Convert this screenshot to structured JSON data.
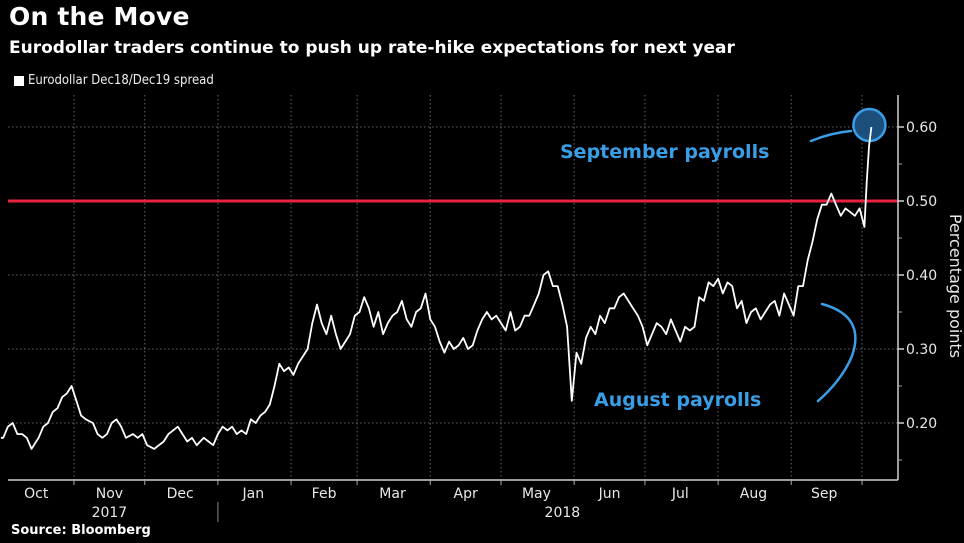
{
  "header": {
    "title": "On the Move",
    "subtitle": "Eurodollar traders continue to push up rate-hike expectations for next year"
  },
  "legend": {
    "series_label": "Eurodollar Dec18/Dec19 spread",
    "icon": "square-swatch"
  },
  "footer": {
    "source": "Source: Bloomberg"
  },
  "colors": {
    "background": "#000000",
    "line": "#ffffff",
    "reference_line": "#e8223f",
    "annotation": "#3a9ee6",
    "grid": "#666666"
  },
  "chart_data": {
    "type": "line",
    "title": "On the Move",
    "subtitle": "Eurodollar traders continue to push up rate-hike expectations for next year",
    "xlabel": "",
    "ylabel": "Percentage points",
    "ylim": [
      0.13,
      0.645
    ],
    "yticks": [
      0.2,
      0.3,
      0.4,
      0.5,
      0.6
    ],
    "ytick_labels": [
      "0.20",
      "0.30",
      "0.40",
      "0.50",
      "0.60"
    ],
    "xlim": [
      "2017-10-01",
      "2018-10-15"
    ],
    "x_month_boundaries": [
      "2017-11-01",
      "2017-12-01",
      "2018-01-01",
      "2018-02-01",
      "2018-03-01",
      "2018-04-01",
      "2018-05-01",
      "2018-06-01",
      "2018-07-01",
      "2018-08-01",
      "2018-09-01",
      "2018-10-01"
    ],
    "xtick_labels": [
      {
        "label": "Oct",
        "mid": "2017-10-16"
      },
      {
        "label": "Nov",
        "mid": "2017-11-16"
      },
      {
        "label": "Dec",
        "mid": "2017-12-16"
      },
      {
        "label": "Jan",
        "mid": "2018-01-16"
      },
      {
        "label": "Feb",
        "mid": "2018-02-15"
      },
      {
        "label": "Mar",
        "mid": "2018-03-16"
      },
      {
        "label": "Apr",
        "mid": "2018-04-16"
      },
      {
        "label": "May",
        "mid": "2018-05-16"
      },
      {
        "label": "Jun",
        "mid": "2018-06-16"
      },
      {
        "label": "Jul",
        "mid": "2018-07-16"
      },
      {
        "label": "Aug",
        "mid": "2018-08-16"
      },
      {
        "label": "Sep",
        "mid": "2018-09-15"
      }
    ],
    "year_labels": [
      {
        "label": "2017",
        "mid": "2017-11-16"
      },
      {
        "label": "2018",
        "mid": "2018-05-27"
      }
    ],
    "year_divider": "2018-01-01",
    "legend": [
      "Eurodollar Dec18/Dec19 spread"
    ],
    "legend_position": "top-left",
    "grid": true,
    "reference_lines": [
      {
        "y": 0.5,
        "color": "#e8223f"
      }
    ],
    "annotations": [
      {
        "text": "September payrolls",
        "target": [
          "2018-10-05",
          0.6
        ]
      },
      {
        "text": "August payrolls",
        "target": [
          "2018-09-07",
          0.36
        ]
      }
    ],
    "series": [
      {
        "name": "Eurodollar Dec18/Dec19 spread",
        "points": [
          [
            "2017-10-01",
            0.18
          ],
          [
            "2017-10-02",
            0.18
          ],
          [
            "2017-10-04",
            0.195
          ],
          [
            "2017-10-06",
            0.2
          ],
          [
            "2017-10-08",
            0.185
          ],
          [
            "2017-10-10",
            0.185
          ],
          [
            "2017-10-12",
            0.18
          ],
          [
            "2017-10-14",
            0.165
          ],
          [
            "2017-10-17",
            0.18
          ],
          [
            "2017-10-19",
            0.195
          ],
          [
            "2017-10-21",
            0.2
          ],
          [
            "2017-10-23",
            0.215
          ],
          [
            "2017-10-25",
            0.22
          ],
          [
            "2017-10-27",
            0.235
          ],
          [
            "2017-10-29",
            0.24
          ],
          [
            "2017-10-31",
            0.25
          ],
          [
            "2017-11-02",
            0.23
          ],
          [
            "2017-11-04",
            0.21
          ],
          [
            "2017-11-06",
            0.205
          ],
          [
            "2017-11-09",
            0.2
          ],
          [
            "2017-11-11",
            0.185
          ],
          [
            "2017-11-13",
            0.18
          ],
          [
            "2017-11-15",
            0.185
          ],
          [
            "2017-11-17",
            0.2
          ],
          [
            "2017-11-19",
            0.205
          ],
          [
            "2017-11-21",
            0.195
          ],
          [
            "2017-11-23",
            0.18
          ],
          [
            "2017-11-26",
            0.185
          ],
          [
            "2017-11-28",
            0.18
          ],
          [
            "2017-11-30",
            0.185
          ],
          [
            "2017-12-02",
            0.17
          ],
          [
            "2017-12-05",
            0.165
          ],
          [
            "2017-12-07",
            0.17
          ],
          [
            "2017-12-09",
            0.175
          ],
          [
            "2017-12-11",
            0.185
          ],
          [
            "2017-12-13",
            0.19
          ],
          [
            "2017-12-15",
            0.195
          ],
          [
            "2017-12-17",
            0.185
          ],
          [
            "2017-12-19",
            0.175
          ],
          [
            "2017-12-21",
            0.18
          ],
          [
            "2017-12-23",
            0.17
          ],
          [
            "2017-12-26",
            0.18
          ],
          [
            "2017-12-28",
            0.175
          ],
          [
            "2017-12-30",
            0.17
          ],
          [
            "2018-01-01",
            0.185
          ],
          [
            "2018-01-03",
            0.195
          ],
          [
            "2018-01-05",
            0.19
          ],
          [
            "2018-01-07",
            0.195
          ],
          [
            "2018-01-09",
            0.185
          ],
          [
            "2018-01-11",
            0.19
          ],
          [
            "2018-01-13",
            0.185
          ],
          [
            "2018-01-15",
            0.205
          ],
          [
            "2018-01-17",
            0.2
          ],
          [
            "2018-01-19",
            0.21
          ],
          [
            "2018-01-21",
            0.215
          ],
          [
            "2018-01-23",
            0.225
          ],
          [
            "2018-01-25",
            0.25
          ],
          [
            "2018-01-27",
            0.28
          ],
          [
            "2018-01-29",
            0.27
          ],
          [
            "2018-01-31",
            0.275
          ],
          [
            "2018-02-02",
            0.265
          ],
          [
            "2018-02-04",
            0.28
          ],
          [
            "2018-02-06",
            0.29
          ],
          [
            "2018-02-08",
            0.3
          ],
          [
            "2018-02-10",
            0.335
          ],
          [
            "2018-02-12",
            0.36
          ],
          [
            "2018-02-14",
            0.335
          ],
          [
            "2018-02-16",
            0.32
          ],
          [
            "2018-02-18",
            0.345
          ],
          [
            "2018-02-20",
            0.32
          ],
          [
            "2018-02-22",
            0.3
          ],
          [
            "2018-02-24",
            0.31
          ],
          [
            "2018-02-26",
            0.32
          ],
          [
            "2018-02-28",
            0.345
          ],
          [
            "2018-03-02",
            0.35
          ],
          [
            "2018-03-04",
            0.37
          ],
          [
            "2018-03-06",
            0.355
          ],
          [
            "2018-03-08",
            0.33
          ],
          [
            "2018-03-10",
            0.35
          ],
          [
            "2018-03-12",
            0.32
          ],
          [
            "2018-03-14",
            0.335
          ],
          [
            "2018-03-16",
            0.345
          ],
          [
            "2018-03-18",
            0.35
          ],
          [
            "2018-03-20",
            0.365
          ],
          [
            "2018-03-22",
            0.34
          ],
          [
            "2018-03-24",
            0.33
          ],
          [
            "2018-03-26",
            0.35
          ],
          [
            "2018-03-28",
            0.355
          ],
          [
            "2018-03-30",
            0.375
          ],
          [
            "2018-04-01",
            0.34
          ],
          [
            "2018-04-03",
            0.33
          ],
          [
            "2018-04-05",
            0.31
          ],
          [
            "2018-04-07",
            0.295
          ],
          [
            "2018-04-09",
            0.31
          ],
          [
            "2018-04-11",
            0.3
          ],
          [
            "2018-04-13",
            0.305
          ],
          [
            "2018-04-15",
            0.315
          ],
          [
            "2018-04-17",
            0.3
          ],
          [
            "2018-04-19",
            0.305
          ],
          [
            "2018-04-21",
            0.325
          ],
          [
            "2018-04-23",
            0.34
          ],
          [
            "2018-04-25",
            0.35
          ],
          [
            "2018-04-27",
            0.34
          ],
          [
            "2018-04-29",
            0.345
          ],
          [
            "2018-05-01",
            0.335
          ],
          [
            "2018-05-03",
            0.325
          ],
          [
            "2018-05-05",
            0.35
          ],
          [
            "2018-05-07",
            0.325
          ],
          [
            "2018-05-09",
            0.33
          ],
          [
            "2018-05-11",
            0.345
          ],
          [
            "2018-05-13",
            0.345
          ],
          [
            "2018-05-15",
            0.36
          ],
          [
            "2018-05-17",
            0.375
          ],
          [
            "2018-05-19",
            0.4
          ],
          [
            "2018-05-21",
            0.405
          ],
          [
            "2018-05-23",
            0.385
          ],
          [
            "2018-05-25",
            0.385
          ],
          [
            "2018-05-27",
            0.36
          ],
          [
            "2018-05-29",
            0.33
          ],
          [
            "2018-05-31",
            0.23
          ],
          [
            "2018-06-02",
            0.295
          ],
          [
            "2018-06-04",
            0.28
          ],
          [
            "2018-06-06",
            0.315
          ],
          [
            "2018-06-08",
            0.33
          ],
          [
            "2018-06-10",
            0.32
          ],
          [
            "2018-06-12",
            0.345
          ],
          [
            "2018-06-14",
            0.335
          ],
          [
            "2018-06-16",
            0.355
          ],
          [
            "2018-06-18",
            0.355
          ],
          [
            "2018-06-20",
            0.37
          ],
          [
            "2018-06-22",
            0.375
          ],
          [
            "2018-06-24",
            0.365
          ],
          [
            "2018-06-26",
            0.355
          ],
          [
            "2018-06-28",
            0.345
          ],
          [
            "2018-06-30",
            0.33
          ],
          [
            "2018-07-02",
            0.305
          ],
          [
            "2018-07-04",
            0.32
          ],
          [
            "2018-07-06",
            0.335
          ],
          [
            "2018-07-08",
            0.33
          ],
          [
            "2018-07-10",
            0.32
          ],
          [
            "2018-07-12",
            0.34
          ],
          [
            "2018-07-14",
            0.325
          ],
          [
            "2018-07-16",
            0.31
          ],
          [
            "2018-07-18",
            0.33
          ],
          [
            "2018-07-20",
            0.325
          ],
          [
            "2018-07-22",
            0.33
          ],
          [
            "2018-07-24",
            0.37
          ],
          [
            "2018-07-26",
            0.365
          ],
          [
            "2018-07-28",
            0.39
          ],
          [
            "2018-07-30",
            0.385
          ],
          [
            "2018-08-01",
            0.395
          ],
          [
            "2018-08-03",
            0.375
          ],
          [
            "2018-08-05",
            0.39
          ],
          [
            "2018-08-07",
            0.385
          ],
          [
            "2018-08-09",
            0.355
          ],
          [
            "2018-08-11",
            0.365
          ],
          [
            "2018-08-13",
            0.335
          ],
          [
            "2018-08-15",
            0.35
          ],
          [
            "2018-08-17",
            0.355
          ],
          [
            "2018-08-19",
            0.34
          ],
          [
            "2018-08-21",
            0.35
          ],
          [
            "2018-08-23",
            0.36
          ],
          [
            "2018-08-25",
            0.365
          ],
          [
            "2018-08-27",
            0.345
          ],
          [
            "2018-08-29",
            0.375
          ],
          [
            "2018-08-31",
            0.36
          ],
          [
            "2018-09-02",
            0.345
          ],
          [
            "2018-09-04",
            0.385
          ],
          [
            "2018-09-06",
            0.385
          ],
          [
            "2018-09-08",
            0.42
          ],
          [
            "2018-09-10",
            0.445
          ],
          [
            "2018-09-12",
            0.475
          ],
          [
            "2018-09-14",
            0.495
          ],
          [
            "2018-09-16",
            0.495
          ],
          [
            "2018-09-18",
            0.51
          ],
          [
            "2018-09-20",
            0.495
          ],
          [
            "2018-09-22",
            0.48
          ],
          [
            "2018-09-24",
            0.49
          ],
          [
            "2018-09-26",
            0.485
          ],
          [
            "2018-09-28",
            0.48
          ],
          [
            "2018-09-30",
            0.49
          ],
          [
            "2018-10-02",
            0.465
          ],
          [
            "2018-10-03",
            0.525
          ],
          [
            "2018-10-04",
            0.575
          ],
          [
            "2018-10-05",
            0.6
          ]
        ]
      }
    ]
  }
}
